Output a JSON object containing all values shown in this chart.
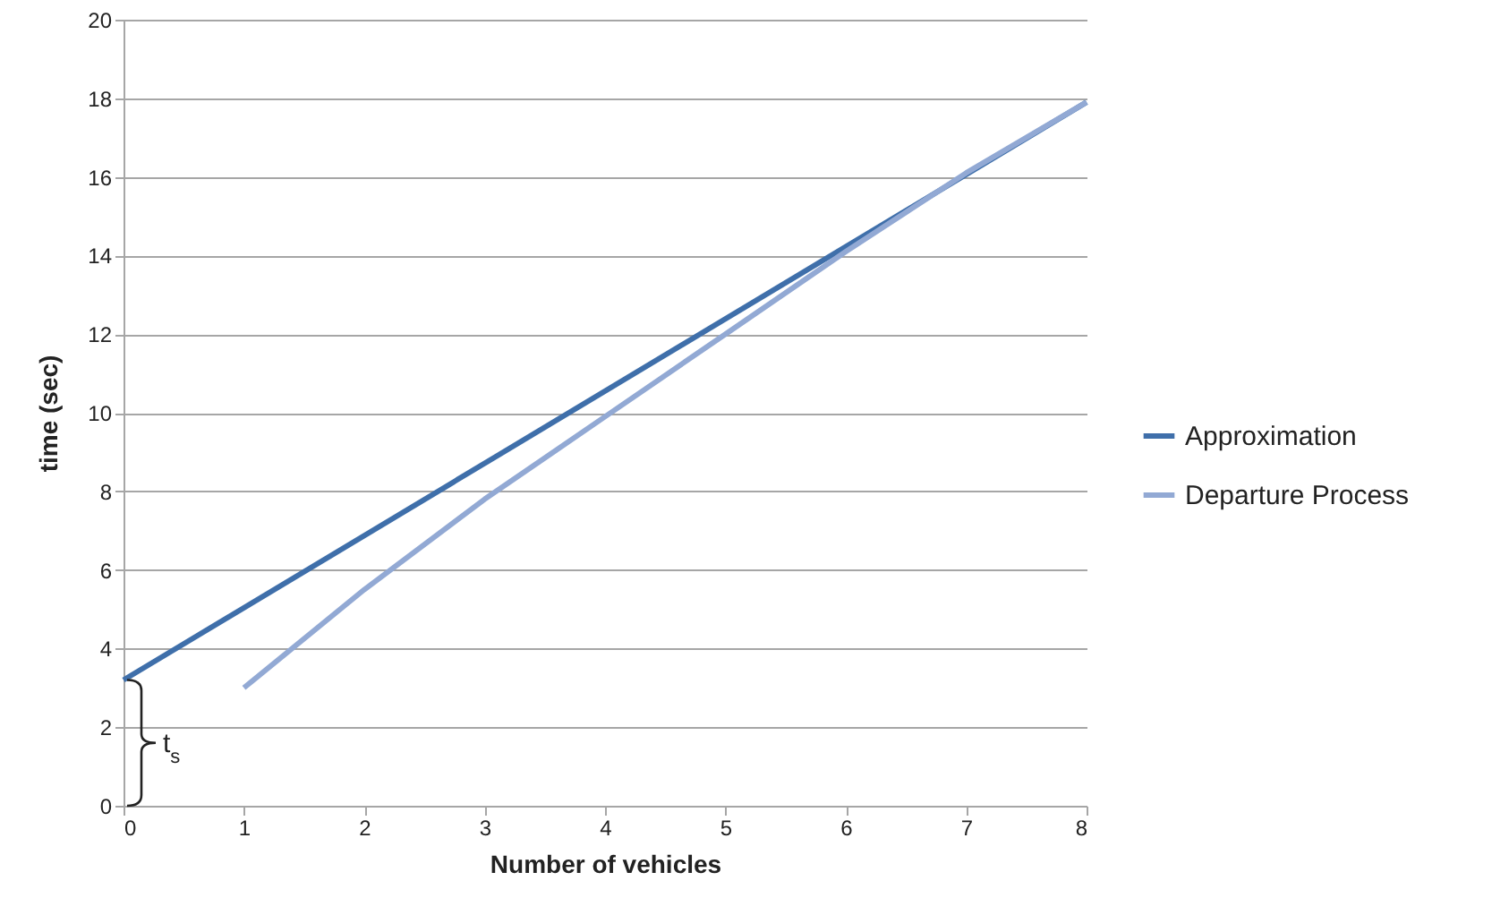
{
  "chart_data": {
    "type": "line",
    "xlabel": "Number of vehicles",
    "ylabel": "time (sec)",
    "xlim": [
      0,
      8
    ],
    "xticks": [
      0,
      1,
      2,
      3,
      4,
      5,
      6,
      7,
      8
    ],
    "ylim": [
      0,
      20
    ],
    "yticks": [
      0,
      2,
      4,
      6,
      8,
      10,
      12,
      14,
      16,
      18,
      20
    ],
    "grid": "y",
    "legend": "right",
    "marker": "none",
    "line_style": "solid",
    "series": [
      {
        "name": "Approximation",
        "color": "#3f6faa",
        "x": [
          0,
          8
        ],
        "values": [
          3.2,
          17.9
        ]
      },
      {
        "name": "Departure Process",
        "color": "#92a9d4",
        "x": [
          1,
          2,
          3,
          4,
          5,
          6,
          7,
          8
        ],
        "values": [
          3.0,
          5.5,
          7.8,
          9.9,
          12.0,
          14.1,
          16.1,
          17.9
        ]
      }
    ],
    "annotations": [
      {
        "text": "t$_{s}$",
        "x": 0,
        "y": 3.2
      }
    ]
  }
}
